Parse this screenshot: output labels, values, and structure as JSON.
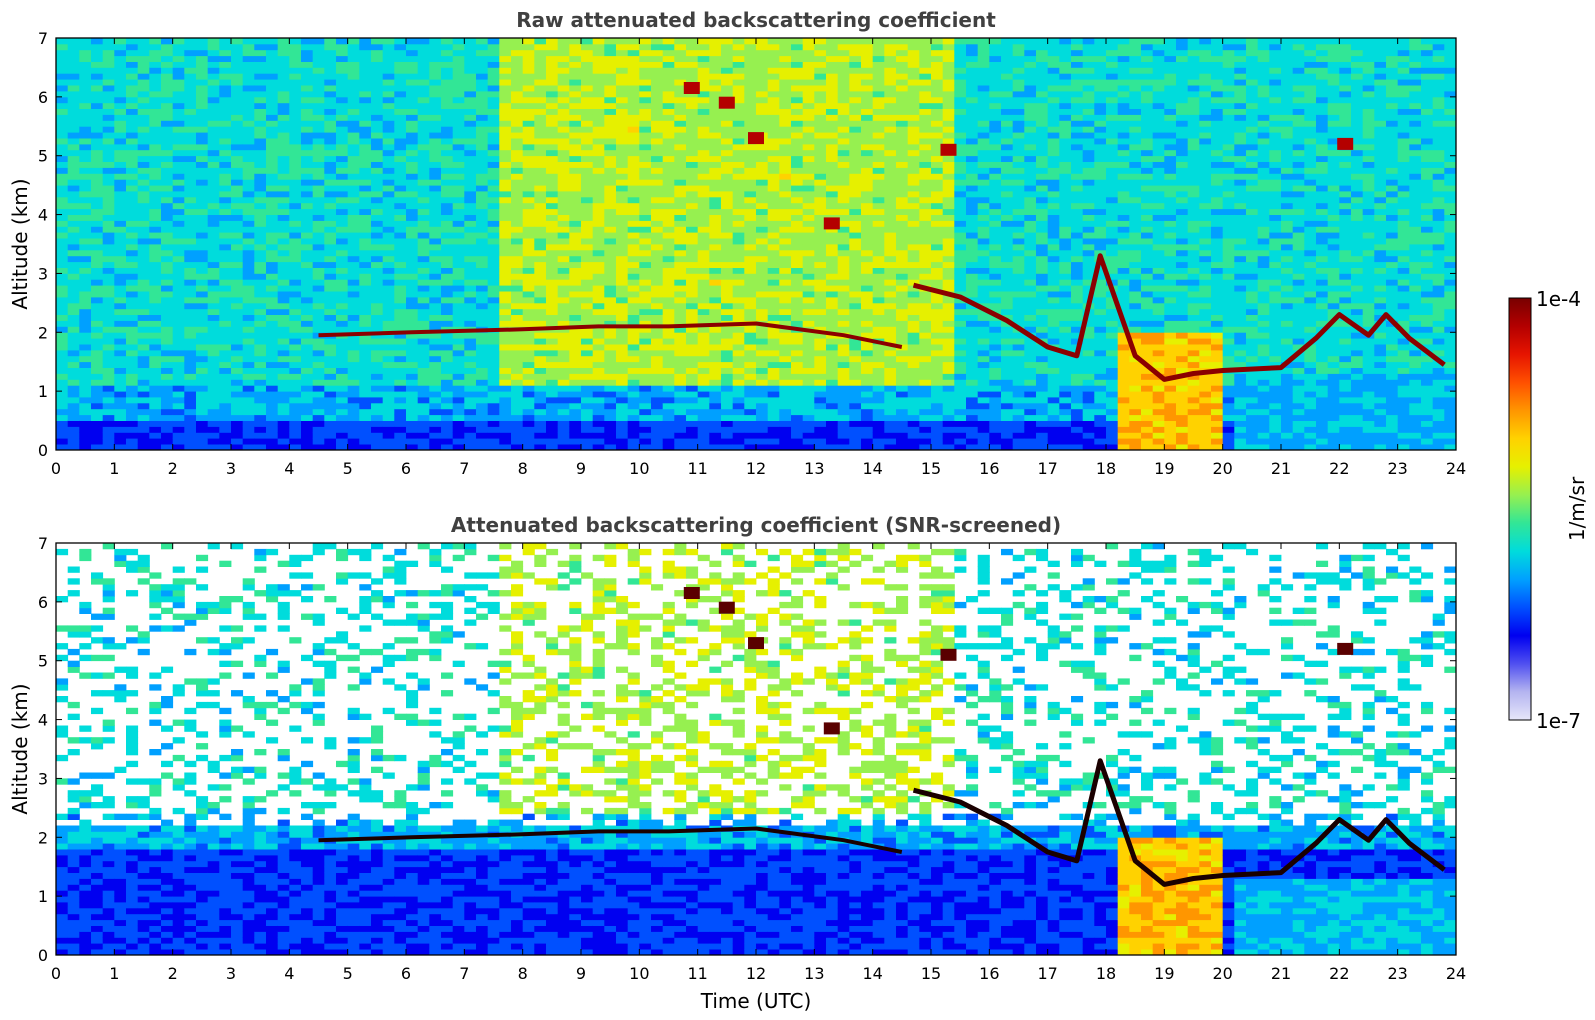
{
  "chart_data": [
    {
      "type": "heatmap",
      "title": "Raw attenuated backscattering coefficient",
      "xlabel": "",
      "ylabel": "Altitude (km)",
      "xlim": [
        0,
        24
      ],
      "ylim": [
        0,
        7
      ],
      "xticks": [
        "0",
        "1",
        "2",
        "3",
        "4",
        "5",
        "6",
        "7",
        "8",
        "9",
        "10",
        "11",
        "12",
        "13",
        "14",
        "15",
        "16",
        "17",
        "18",
        "19",
        "20",
        "21",
        "22",
        "23",
        "24"
      ],
      "yticks": [
        "0",
        "1",
        "2",
        "3",
        "4",
        "5",
        "6",
        "7"
      ],
      "screened": false,
      "features": {
        "boundary_layer_top_km": 0.5,
        "aerosol_layer_km": [
          [
            4.5,
            1.95
          ],
          [
            6.1,
            2.0
          ],
          [
            8.0,
            2.05
          ],
          [
            9.3,
            2.1
          ],
          [
            10.5,
            2.1
          ],
          [
            12.0,
            2.15
          ],
          [
            13.5,
            1.95
          ],
          [
            14.5,
            1.75
          ]
        ],
        "cloud_layer_km": [
          [
            14.7,
            2.8
          ],
          [
            15.5,
            2.6
          ],
          [
            16.3,
            2.2
          ],
          [
            17.0,
            1.75
          ],
          [
            17.5,
            1.6
          ],
          [
            17.9,
            3.3
          ],
          [
            18.5,
            1.6
          ],
          [
            19.0,
            1.2
          ],
          [
            19.5,
            1.3
          ],
          [
            20.0,
            1.35
          ],
          [
            21.0,
            1.4
          ],
          [
            21.6,
            1.9
          ],
          [
            22.0,
            2.3
          ],
          [
            22.5,
            1.95
          ],
          [
            22.8,
            2.3
          ],
          [
            23.2,
            1.9
          ],
          [
            23.8,
            1.45
          ]
        ],
        "high_cloud_km": [
          [
            10.9,
            6.15
          ],
          [
            11.5,
            5.9
          ],
          [
            12.0,
            5.3
          ],
          [
            13.3,
            3.85
          ],
          [
            15.3,
            5.1
          ],
          [
            22.1,
            5.2
          ]
        ]
      }
    },
    {
      "type": "heatmap",
      "title": "Attenuated backscattering coefficient (SNR-screened)",
      "xlabel": "Time (UTC)",
      "ylabel": "Altitude (km)",
      "xlim": [
        0,
        24
      ],
      "ylim": [
        0,
        7
      ],
      "xticks": [
        "0",
        "1",
        "2",
        "3",
        "4",
        "5",
        "6",
        "7",
        "8",
        "9",
        "10",
        "11",
        "12",
        "13",
        "14",
        "15",
        "16",
        "17",
        "18",
        "19",
        "20",
        "21",
        "22",
        "23",
        "24"
      ],
      "yticks": [
        "0",
        "1",
        "2",
        "3",
        "4",
        "5",
        "6",
        "7"
      ],
      "screened": true,
      "features": {
        "boundary_layer_top_km": 1.8,
        "aerosol_layer_km": [
          [
            4.5,
            1.95
          ],
          [
            6.1,
            2.0
          ],
          [
            8.0,
            2.05
          ],
          [
            9.3,
            2.1
          ],
          [
            10.5,
            2.1
          ],
          [
            12.0,
            2.15
          ],
          [
            13.5,
            1.95
          ],
          [
            14.5,
            1.75
          ]
        ],
        "cloud_layer_km": [
          [
            14.7,
            2.8
          ],
          [
            15.5,
            2.6
          ],
          [
            16.3,
            2.2
          ],
          [
            17.0,
            1.75
          ],
          [
            17.5,
            1.6
          ],
          [
            17.9,
            3.3
          ],
          [
            18.5,
            1.6
          ],
          [
            19.0,
            1.2
          ],
          [
            19.5,
            1.3
          ],
          [
            20.0,
            1.35
          ],
          [
            21.0,
            1.4
          ],
          [
            21.6,
            1.9
          ],
          [
            22.0,
            2.3
          ],
          [
            22.5,
            1.95
          ],
          [
            22.8,
            2.3
          ],
          [
            23.2,
            1.9
          ],
          [
            23.8,
            1.45
          ]
        ],
        "high_cloud_km": [
          [
            10.9,
            6.15
          ],
          [
            11.5,
            5.9
          ],
          [
            12.0,
            5.3
          ],
          [
            13.3,
            3.85
          ],
          [
            15.3,
            5.1
          ],
          [
            22.1,
            5.2
          ]
        ]
      }
    }
  ],
  "colorbar": {
    "max_label": "1e-4",
    "min_label": "1e-7",
    "unit_label": "1/m/sr",
    "scale": "log",
    "colors": [
      "#e6e6fa",
      "#b4b4f0",
      "#5050f0",
      "#0000f0",
      "#0050ff",
      "#00a0ff",
      "#00dcdc",
      "#32e696",
      "#96f050",
      "#e6f000",
      "#ffd200",
      "#ff9600",
      "#ff5000",
      "#e61400",
      "#b40000",
      "#780000"
    ]
  }
}
